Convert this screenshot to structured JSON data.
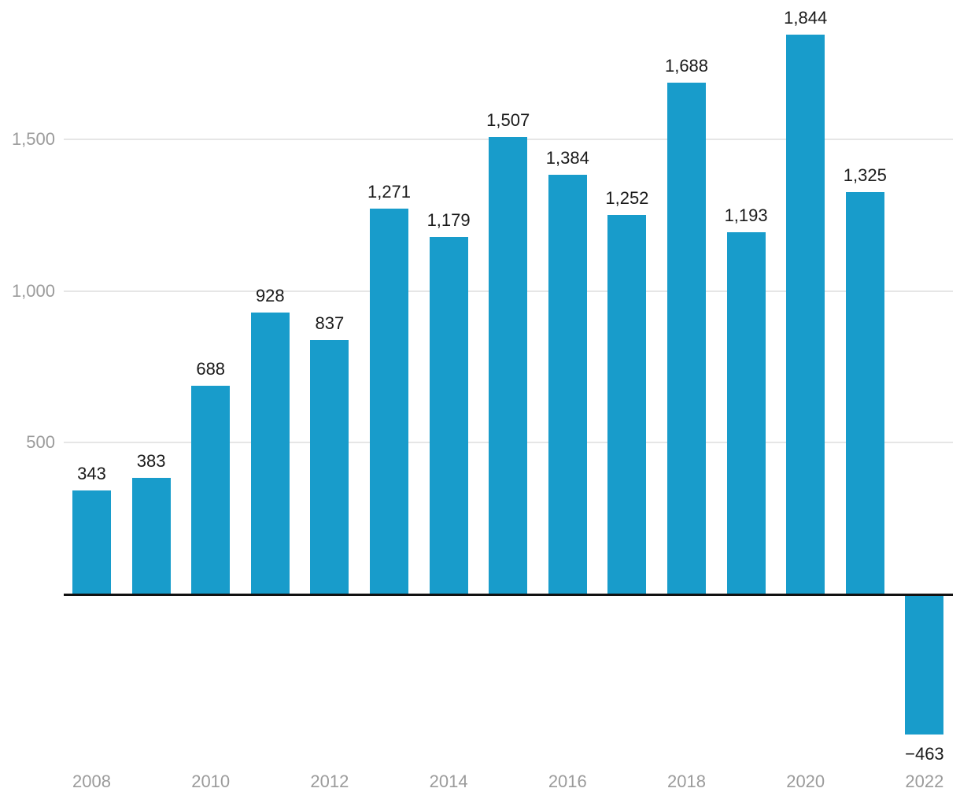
{
  "chart_data": {
    "type": "bar",
    "categories": [
      "2008",
      "2009",
      "2010",
      "2011",
      "2012",
      "2013",
      "2014",
      "2015",
      "2016",
      "2017",
      "2018",
      "2019",
      "2020",
      "2021",
      "2022"
    ],
    "values": [
      343,
      383,
      688,
      928,
      837,
      1271,
      1179,
      1507,
      1384,
      1252,
      1688,
      1193,
      1844,
      1325,
      -463
    ],
    "value_labels": [
      "343",
      "383",
      "688",
      "928",
      "837",
      "1,271",
      "1,179",
      "1,507",
      "1,384",
      "1,252",
      "1,688",
      "1,193",
      "1,844",
      "1,325",
      "−463"
    ],
    "x_tick_labels": [
      "2008",
      "2010",
      "2012",
      "2014",
      "2016",
      "2018",
      "2020",
      "2022"
    ],
    "y_ticks": [
      {
        "value": 1500,
        "label": "1,500"
      },
      {
        "value": 1000,
        "label": "1,000"
      },
      {
        "value": 500,
        "label": "500"
      }
    ],
    "title": "",
    "xlabel": "",
    "ylabel": "",
    "ylim": [
      -700,
      1950
    ],
    "grid": "horizontal-only",
    "legend": "none",
    "zero_baseline": true
  },
  "colors": {
    "background": "#ffffff",
    "bar": "#189ccb",
    "value_label": "#1a1a1a",
    "axis_label": "#9b9b9b",
    "gridline": "#e6e6e6",
    "baseline": "#111111"
  }
}
